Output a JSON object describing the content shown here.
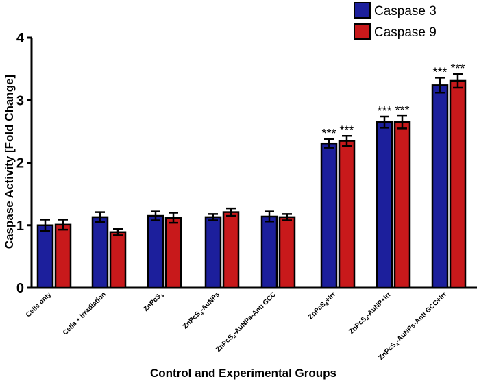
{
  "chart_data": {
    "type": "bar",
    "title": "",
    "xlabel": "Control and Experimental Groups",
    "ylabel": "Caspase Activity [Fold Change]",
    "ylim": [
      0,
      4
    ],
    "yticks": [
      0,
      1,
      2,
      3,
      4
    ],
    "categories": [
      "Cells only",
      "Cells + Irradiation",
      "ZnPcS4",
      "ZnPcS4-AuNPs",
      "ZnPcS4-AuNPs-Anti GCC",
      "ZnPcS4+Irr",
      "ZnPcS4-AuNP+Irr",
      "ZnPcS4-AuNPs-Anti GCC+Irr"
    ],
    "series": [
      {
        "name": "Caspase 3",
        "color": "#1c1f9c",
        "values": [
          1.0,
          1.13,
          1.15,
          1.13,
          1.14,
          2.31,
          2.65,
          3.24
        ],
        "errors": [
          0.09,
          0.08,
          0.07,
          0.05,
          0.08,
          0.07,
          0.09,
          0.12
        ],
        "significance": [
          "",
          "",
          "",
          "",
          "",
          "***",
          "***",
          "***"
        ]
      },
      {
        "name": "Caspase 9",
        "color": "#c8191b",
        "values": [
          1.01,
          0.89,
          1.12,
          1.21,
          1.13,
          2.35,
          2.65,
          3.31
        ],
        "errors": [
          0.08,
          0.05,
          0.08,
          0.06,
          0.05,
          0.08,
          0.1,
          0.11
        ],
        "significance": [
          "",
          "",
          "",
          "",
          "",
          "***",
          "***",
          "***"
        ]
      }
    ],
    "legend": "top-right"
  }
}
